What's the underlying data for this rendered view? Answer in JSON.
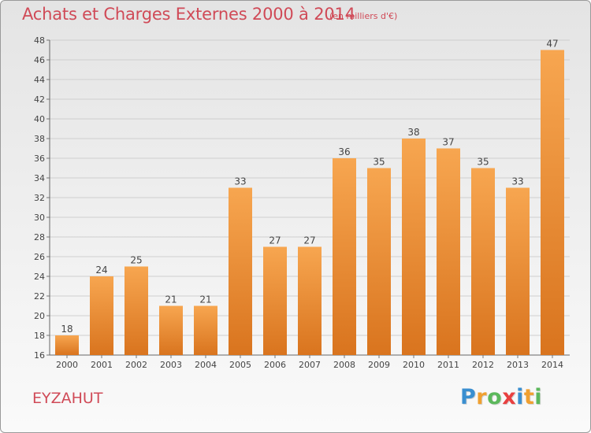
{
  "header": {
    "title": "Achats et Charges Externes 2000 à 2014",
    "subtitle": "(en milliers d'€)"
  },
  "footer": {
    "commune": "EYZAHUT",
    "logo_letters": [
      {
        "char": "P",
        "color": "#3a8fd0"
      },
      {
        "char": "r",
        "color": "#f0a030"
      },
      {
        "char": "o",
        "color": "#5cb85c"
      },
      {
        "char": "x",
        "color": "#e84040"
      },
      {
        "char": "i",
        "color": "#3a8fd0"
      },
      {
        "char": "t",
        "color": "#f0a030"
      },
      {
        "char": "i",
        "color": "#5cb85c"
      }
    ]
  },
  "colors": {
    "bar_top": "#f7a650",
    "bar_bottom": "#d9741e",
    "grid": "#cfcfcf",
    "text_accent": "#d04a57"
  },
  "chart_data": {
    "type": "bar",
    "title": "Achats et Charges Externes 2000 à 2014",
    "subtitle": "(en milliers d'€)",
    "categories": [
      "2000",
      "2001",
      "2002",
      "2003",
      "2004",
      "2005",
      "2006",
      "2007",
      "2008",
      "2009",
      "2010",
      "2011",
      "2012",
      "2013",
      "2014"
    ],
    "values": [
      18,
      24,
      25,
      21,
      21,
      33,
      27,
      27,
      36,
      35,
      38,
      37,
      35,
      33,
      47
    ],
    "ylim": [
      16,
      48
    ],
    "yticks": [
      16,
      18,
      20,
      22,
      24,
      26,
      28,
      30,
      32,
      34,
      36,
      38,
      40,
      42,
      44,
      46,
      48
    ],
    "grid": true,
    "xlabel": "",
    "ylabel": ""
  }
}
